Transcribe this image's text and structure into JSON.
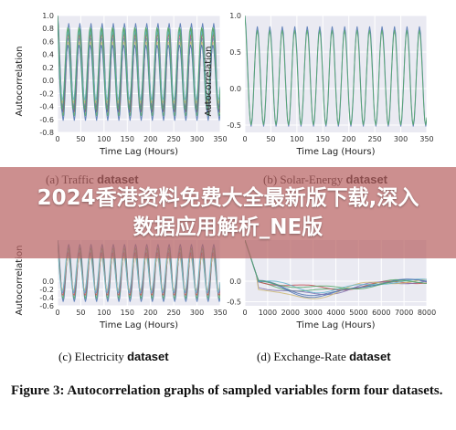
{
  "figure_caption": "Figure 3: Autocorrelation graphs of sampled variables form four datasets.",
  "overlay_title": "2024香港资料免费大全最新版下载,深入数据应用解析_NE版",
  "colors": {
    "plot_bg": "#eaeaf2",
    "grid": "#ffffff",
    "series_palette": [
      "#4c72b0",
      "#55a868",
      "#c44e52",
      "#8172b2",
      "#ccb974",
      "#64b5cd"
    ]
  },
  "chart_data": [
    {
      "id": "traffic",
      "type": "line",
      "subtitle_prefix": "(a) Traffic",
      "subtitle_suffix": "dataset",
      "xlabel": "Time Lag (Hours)",
      "ylabel": "Autocorrelation",
      "xlim": [
        0,
        350
      ],
      "ylim": [
        -0.8,
        1.0
      ],
      "xticks": [
        "0",
        "50",
        "100",
        "150",
        "200",
        "250",
        "300",
        "350"
      ],
      "yticks": [
        "-0.8",
        "-0.6",
        "-0.4",
        "-0.2",
        "0.0",
        "0.2",
        "0.4",
        "0.6",
        "0.8",
        "1.0"
      ],
      "grid": true,
      "pattern": "daily periodic, period 24 h, about 8 series, peaks 0.6-0.9, troughs -0.3 to -0.65"
    },
    {
      "id": "solar",
      "type": "line",
      "subtitle_prefix": "(b) Solar-Energy",
      "subtitle_suffix": "dataset",
      "xlabel": "Time Lag (Hours)",
      "ylabel": "Autocorrelation",
      "xlim": [
        0,
        350
      ],
      "ylim": [
        -0.6,
        1.0
      ],
      "xticks": [
        "0",
        "50",
        "100",
        "150",
        "200",
        "250",
        "300",
        "350"
      ],
      "yticks": [
        "-0.5",
        "0.0",
        "0.5",
        "1.0"
      ],
      "grid": true,
      "pattern": "daily periodic, period 24 h, peaks about 0.85, troughs about -0.5"
    },
    {
      "id": "electricity",
      "type": "line",
      "subtitle_prefix": "(c) Electricity",
      "subtitle_suffix": "dataset",
      "xlabel": "Time Lag (Hours)",
      "ylabel": "Autocorrelation",
      "xlim": [
        0,
        350
      ],
      "ylim": [
        -0.6,
        1.0
      ],
      "xticks": [
        "0",
        "50",
        "100",
        "150",
        "200",
        "250",
        "300",
        "350"
      ],
      "yticks": [
        "-0.6",
        "-0.4",
        "-0.2",
        "0.0"
      ],
      "grid": true,
      "pattern": "daily periodic, period 24 h, troughs -0.2 to -0.5"
    },
    {
      "id": "exchange",
      "type": "line",
      "subtitle_prefix": "(d) Exchange-Rate",
      "subtitle_suffix": "dataset",
      "xlabel": "Time Lag (Hours)",
      "ylabel": "",
      "xlim": [
        0,
        8000
      ],
      "ylim": [
        -0.6,
        1.0
      ],
      "xticks": [
        "0",
        "1000",
        "2000",
        "3000",
        "4000",
        "5000",
        "6000",
        "7000",
        "8000"
      ],
      "yticks": [
        "-0.5",
        "0.0"
      ],
      "grid": true,
      "pattern": "slow non-periodic curves; about 8 series; dip to between -0.15 and -0.55 near 2500-4000, returning to about 0 at 8000"
    }
  ]
}
